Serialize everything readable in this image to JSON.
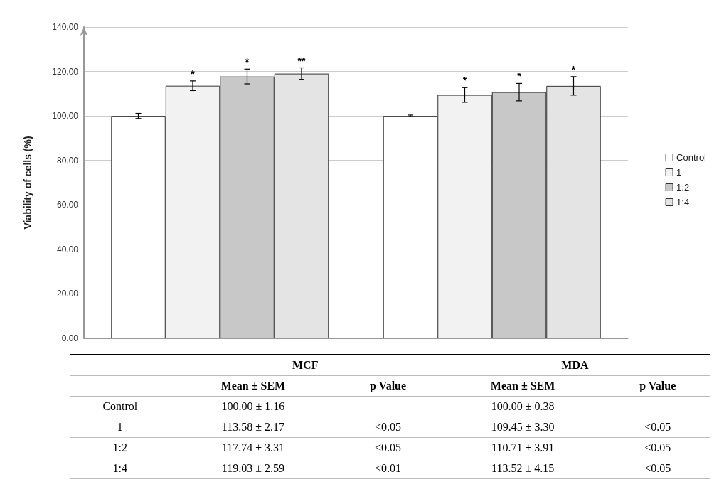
{
  "chart_data": [
    {
      "type": "bar",
      "ylabel": "Viability of cells (%)",
      "categories": [
        null,
        null
      ],
      "series": [
        {
          "name": "Control",
          "color": "#ffffff",
          "values": [
            100.0,
            100.0
          ],
          "errors": [
            1.16,
            0.38
          ],
          "value_labels": [
            null,
            null
          ]
        },
        {
          "name": "1",
          "color": "#f2f2f2",
          "values": [
            113.58,
            109.45
          ],
          "errors": [
            2.17,
            3.3
          ],
          "value_labels": [
            "*",
            "*"
          ]
        },
        {
          "name": "1:2",
          "color": "#c8c8c8",
          "values": [
            117.74,
            110.71
          ],
          "errors": [
            3.31,
            3.91
          ],
          "value_labels": [
            "*",
            "*"
          ]
        },
        {
          "name": "1:4",
          "color": "#e4e4e4",
          "values": [
            119.03,
            113.52
          ],
          "errors": [
            2.59,
            4.15
          ],
          "value_labels": [
            "**",
            "*"
          ]
        }
      ],
      "ylim": [
        0,
        140
      ],
      "yticks": [
        {
          "value": 0,
          "label": "0.00"
        },
        {
          "value": 20,
          "label": "20.00"
        },
        {
          "value": 40,
          "label": "40.00"
        },
        {
          "value": 60,
          "label": "60.00"
        },
        {
          "value": 80,
          "label": "80.00"
        },
        {
          "value": 100,
          "label": "100.00"
        },
        {
          "value": 120,
          "label": "120.00"
        },
        {
          "value": 140,
          "label": "140.00"
        }
      ],
      "grid": "y",
      "legend": "right"
    },
    {
      "type": "other",
      "annotations": [
        "MCF",
        "MDA"
      ],
      "categories": [
        "Mean ± SEM",
        "p Value",
        "Mean ± SEM",
        "p Value"
      ],
      "y_categories": [
        "Control",
        "1",
        "1:2",
        "1:4"
      ],
      "cell_labels": [
        [
          "100.00 ± 1.16",
          null,
          "100.00 ± 0.38",
          null
        ],
        [
          "113.58 ± 2.17",
          "<0.05",
          "109.45 ± 3.30",
          "<0.05"
        ],
        [
          "117.74 ± 3.31",
          "<0.05",
          "110.71 ± 3.91",
          "<0.05"
        ],
        [
          "119.03 ± 2.59",
          "<0.01",
          "113.52 ± 4.15",
          "<0.05"
        ]
      ]
    }
  ]
}
